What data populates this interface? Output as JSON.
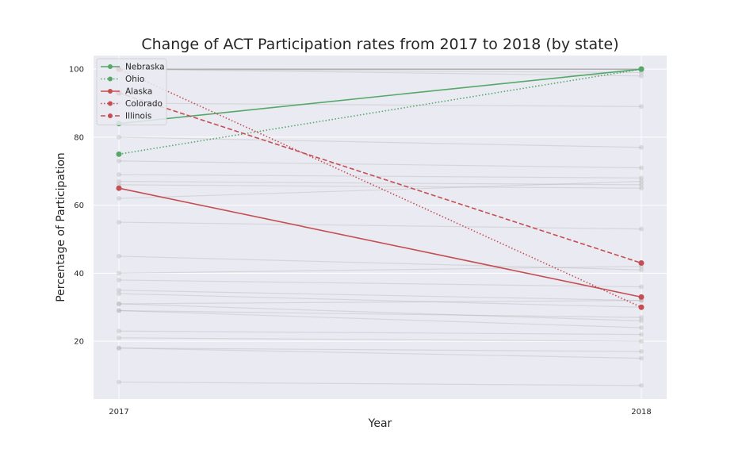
{
  "chart_data": {
    "type": "line",
    "title": "Change of ACT Participation rates from 2017 to 2018 (by state)",
    "xlabel": "Year",
    "ylabel": "Percentage of Participation",
    "x": [
      "2017",
      "2018"
    ],
    "ylim": [
      3,
      104
    ],
    "yticks": [
      20,
      40,
      60,
      80,
      100
    ],
    "grid": true,
    "legend_position": "top-left",
    "highlight_series": [
      {
        "name": "Nebraska",
        "values": [
          84,
          100
        ],
        "color": "#55a868",
        "style": "solid"
      },
      {
        "name": "Ohio",
        "values": [
          75,
          100
        ],
        "color": "#55a868",
        "style": "dotted"
      },
      {
        "name": "Alaska",
        "values": [
          65,
          33
        ],
        "color": "#c44e52",
        "style": "solid"
      },
      {
        "name": "Colorado",
        "values": [
          100,
          30
        ],
        "color": "#c44e52",
        "style": "dotted"
      },
      {
        "name": "Illinois",
        "values": [
          93,
          43
        ],
        "color": "#c44e52",
        "style": "dashed"
      }
    ],
    "background_series": [
      [
        100,
        100
      ],
      [
        100,
        100
      ],
      [
        100,
        100
      ],
      [
        100,
        100
      ],
      [
        100,
        100
      ],
      [
        100,
        100
      ],
      [
        100,
        100
      ],
      [
        100,
        100
      ],
      [
        100,
        100
      ],
      [
        100,
        100
      ],
      [
        100,
        100
      ],
      [
        100,
        100
      ],
      [
        100,
        99
      ],
      [
        100,
        98
      ],
      [
        90,
        89
      ],
      [
        80,
        77
      ],
      [
        73,
        71
      ],
      [
        69,
        68
      ],
      [
        67,
        66
      ],
      [
        66,
        65
      ],
      [
        62,
        67
      ],
      [
        55,
        53
      ],
      [
        45,
        41
      ],
      [
        40,
        42
      ],
      [
        38,
        36
      ],
      [
        35,
        32
      ],
      [
        34,
        30
      ],
      [
        31,
        32
      ],
      [
        31,
        26
      ],
      [
        29,
        24
      ],
      [
        29,
        27
      ],
      [
        23,
        22
      ],
      [
        21,
        20
      ],
      [
        18,
        17
      ],
      [
        18,
        15
      ],
      [
        8,
        7
      ]
    ],
    "colors": {
      "plot_background": "#eaeaf2",
      "grid": "#ffffff",
      "background_line": "#b0b0b0"
    }
  }
}
